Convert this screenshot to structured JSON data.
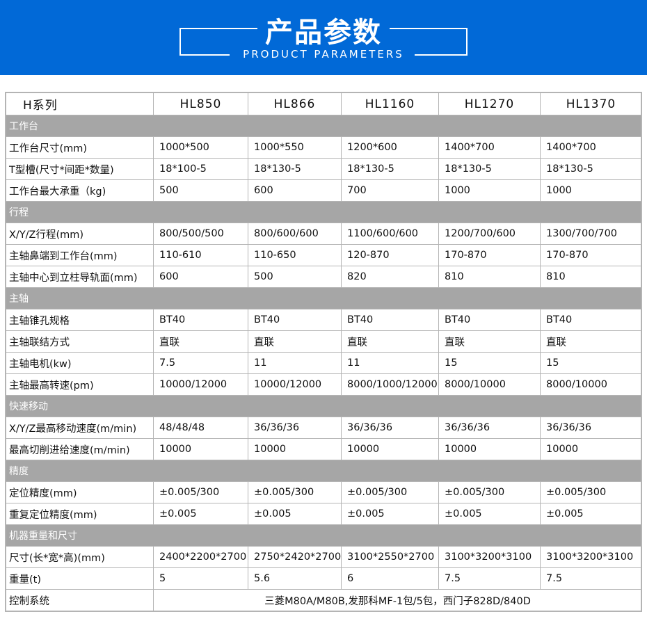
{
  "header": {
    "title": "产品参数",
    "subtitle": "PRODUCT PARAMETERS",
    "color": "#0169d7"
  },
  "table": {
    "columns": [
      "H系列",
      "HL850",
      "HL866",
      "HL1160",
      "HL1270",
      "HL1370"
    ],
    "sections": [
      {
        "name": "工作台",
        "rows": [
          [
            "工作台尺寸(mm)",
            "1000*500",
            "1000*550",
            "1200*600",
            "1400*700",
            "1400*700"
          ],
          [
            "T型槽(尺寸*间距*数量)",
            "18*100-5",
            "18*130-5",
            "18*130-5",
            "18*130-5",
            "18*130-5"
          ],
          [
            "工作台最大承重（kg)",
            "500",
            "600",
            "700",
            "1000",
            "1000"
          ]
        ]
      },
      {
        "name": "行程",
        "rows": [
          [
            "X/Y/Z行程(mm)",
            "800/500/500",
            "800/600/600",
            "1100/600/600",
            "1200/700/600",
            "1300/700/700"
          ],
          [
            "主轴鼻端到工作台(mm)",
            "110-610",
            "110-650",
            "120-870",
            "170-870",
            "170-870"
          ],
          [
            "主轴中心到立柱导轨面(mm)",
            "600",
            "500",
            "820",
            "810",
            "810"
          ]
        ]
      },
      {
        "name": "主轴",
        "rows": [
          [
            "主轴锥孔规格",
            "BT40",
            "BT40",
            "BT40",
            "BT40",
            "BT40"
          ],
          [
            "主轴联结方式",
            "直联",
            "直联",
            "直联",
            "直联",
            "直联"
          ],
          [
            "主轴电机(kw)",
            "7.5",
            "11",
            "11",
            "15",
            "15"
          ],
          [
            "主轴最高转速(pm)",
            "10000/12000",
            "10000/12000",
            "8000/1000/12000",
            "8000/10000",
            "8000/10000"
          ]
        ]
      },
      {
        "name": "快速移动",
        "rows": [
          [
            "X/Y/Z最高移动速度(m/min)",
            "48/48/48",
            "36/36/36",
            "36/36/36",
            "36/36/36",
            "36/36/36"
          ],
          [
            "最高切削进给速度(m/min)",
            "10000",
            "10000",
            "10000",
            "10000",
            "10000"
          ]
        ]
      },
      {
        "name": "精度",
        "rows": [
          [
            "定位精度(mm)",
            "±0.005/300",
            "±0.005/300",
            "±0.005/300",
            "±0.005/300",
            "±0.005/300"
          ],
          [
            "重复定位精度(mm)",
            "±0.005",
            "±0.005",
            "±0.005",
            "±0.005",
            "±0.005"
          ]
        ]
      },
      {
        "name": "机器重量和尺寸",
        "rows": [
          [
            "尺寸(长*宽*高)(mm)",
            "2400*2200*2700",
            "2750*2420*2700",
            "3100*2550*2700",
            "3100*3200*3100",
            "3100*3200*3100"
          ],
          [
            "重量(t)",
            "5",
            "5.6",
            "6",
            "7.5",
            "7.5"
          ]
        ]
      }
    ],
    "control": {
      "label": "控制系统",
      "value": "三菱M80A/M80B,发那科MF-1包/5包，西门子828D/840D"
    }
  }
}
